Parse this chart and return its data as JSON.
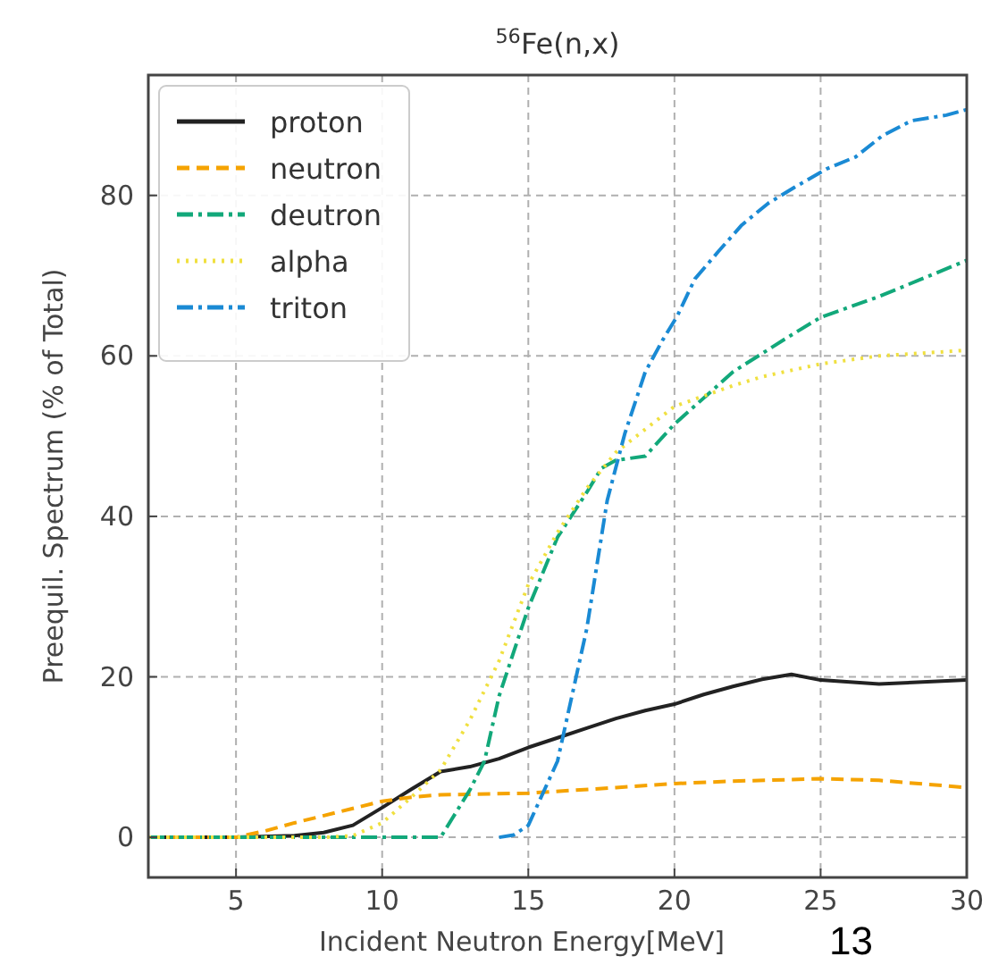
{
  "chart_data": {
    "type": "line",
    "title": "$^{56}$Fe(n,x)",
    "xlabel": "Incident Neutron Energy[MeV]",
    "ylabel": "Preequil. Spectrum (% of Total)",
    "xlim": [
      2,
      30
    ],
    "ylim": [
      -5,
      95
    ],
    "xticks": [
      5,
      10,
      15,
      20,
      25,
      30
    ],
    "yticks": [
      0,
      20,
      40,
      60,
      80
    ],
    "grid": true,
    "legend": "top left",
    "annotations": [
      "13"
    ],
    "series": [
      {
        "name": "proton",
        "color": "#222222",
        "line_style": "solid",
        "x": [
          2,
          5,
          7,
          8,
          9,
          10,
          11,
          12,
          13,
          14,
          15,
          16,
          17,
          18,
          19,
          20,
          21,
          22,
          23,
          24,
          25,
          27,
          30
        ],
        "values": [
          0,
          0,
          0.2,
          0.6,
          1.5,
          3.7,
          6,
          8.2,
          8.8,
          9.8,
          11.2,
          12.4,
          13.6,
          14.8,
          15.8,
          16.6,
          17.8,
          18.8,
          19.7,
          20.3,
          19.6,
          19.1,
          19.6
        ]
      },
      {
        "name": "neutron",
        "color": "#f5a300",
        "line_style": "dashed",
        "x": [
          2,
          5,
          6,
          7,
          8,
          9,
          10,
          11,
          12,
          15,
          18,
          20,
          22,
          25,
          27,
          30
        ],
        "values": [
          0,
          0,
          0.8,
          1.8,
          2.7,
          3.6,
          4.5,
          5,
          5.3,
          5.5,
          6.2,
          6.7,
          7,
          7.3,
          7.1,
          6.2
        ]
      },
      {
        "name": "deutron",
        "color": "#12a87a",
        "line_style": "dashdot",
        "x": [
          2,
          9,
          11,
          12,
          13,
          13.5,
          14,
          15,
          16,
          17,
          17.5,
          18,
          19,
          20,
          22,
          24,
          25,
          27,
          30
        ],
        "values": [
          0,
          0,
          0,
          0,
          5.9,
          9.5,
          17.6,
          28.6,
          37.4,
          43,
          46,
          47,
          47.5,
          51.5,
          58,
          62.6,
          64.8,
          67.4,
          71.9
        ]
      },
      {
        "name": "alpha",
        "color": "#f0e040",
        "line_style": "dotted",
        "x": [
          2,
          8,
          9,
          10,
          11,
          12,
          13,
          14,
          15,
          16,
          17,
          18,
          20,
          21,
          22,
          23,
          25,
          27,
          30
        ],
        "values": [
          0,
          0,
          0.2,
          1.8,
          5,
          8.4,
          14.6,
          22,
          31.5,
          38,
          43.5,
          48,
          53.7,
          55,
          56.3,
          57.4,
          59,
          60,
          60.7
        ]
      },
      {
        "name": "triton",
        "color": "#1a8ad4",
        "line_style": "dashdot",
        "x": [
          14,
          14.5,
          15,
          16,
          17,
          17.7,
          18.3,
          19,
          19.6,
          20.1,
          20.7,
          21.5,
          22.3,
          23.2,
          24.1,
          25.2,
          26.2,
          27.1,
          28.1,
          29.3,
          30
        ],
        "values": [
          0,
          0.3,
          1.5,
          9.5,
          26,
          42,
          50.3,
          58,
          62,
          65,
          69.6,
          73,
          76.3,
          79,
          81,
          83.3,
          84.8,
          87.4,
          89.3,
          90,
          90.7
        ]
      }
    ]
  }
}
